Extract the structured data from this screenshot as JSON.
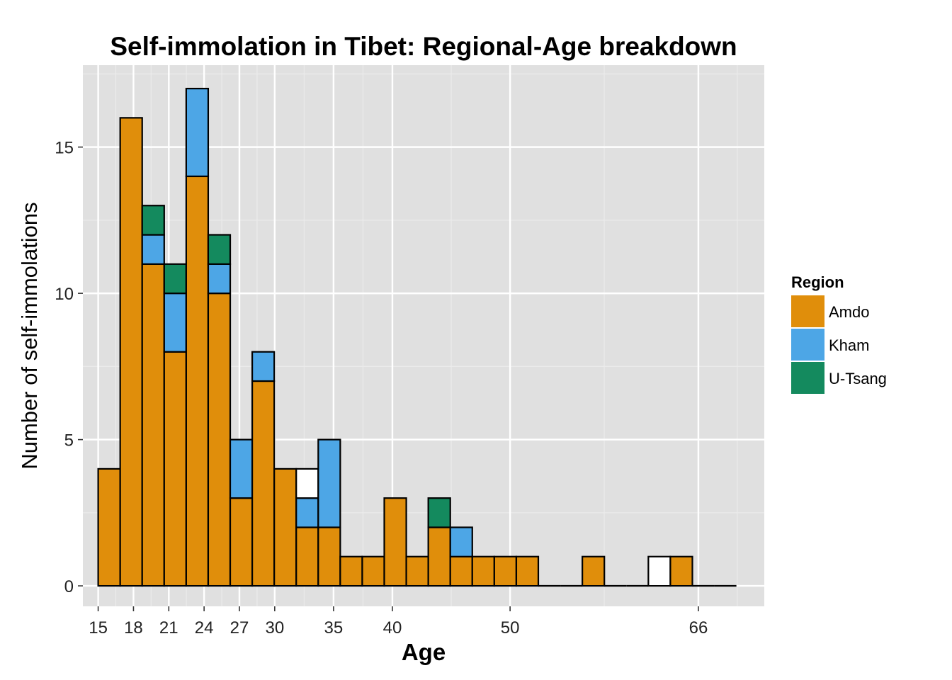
{
  "chart_data": {
    "type": "bar",
    "stacked": true,
    "title": "Self-immolation in Tibet: Regional-Age breakdown",
    "xlabel": "Age",
    "ylabel": "Number of self-immolations",
    "x_ticks": [
      15,
      18,
      21,
      24,
      27,
      30,
      35,
      40,
      50,
      66
    ],
    "y_ticks": [
      0,
      5,
      10,
      15
    ],
    "xlim": [
      13.7,
      71.6
    ],
    "ylim": [
      -0.7,
      17.8
    ],
    "grid": true,
    "legend_position": "right",
    "legend": {
      "title": "Region",
      "entries": [
        "Amdo",
        "Kham",
        "U-Tsang"
      ]
    },
    "colors": {
      "Amdo": "#E08E0B",
      "Kham": "#4DA6E6",
      "U-Tsang": "#148A5E",
      "Unknown": "#FFFFFF",
      "panel": "#E0E0E0",
      "grid_major": "#FFFFFF",
      "grid_minor": "#EBEBEB",
      "outline": "#000000"
    },
    "bin_width": 1.87,
    "bins": [
      {
        "start": 15.0,
        "Amdo": 4,
        "Kham": 0,
        "U-Tsang": 0,
        "Unknown": 0
      },
      {
        "start": 16.87,
        "Amdo": 16,
        "Kham": 0,
        "U-Tsang": 0,
        "Unknown": 0
      },
      {
        "start": 18.74,
        "Amdo": 11,
        "Kham": 1,
        "U-Tsang": 1,
        "Unknown": 0
      },
      {
        "start": 20.61,
        "Amdo": 8,
        "Kham": 2,
        "U-Tsang": 1,
        "Unknown": 0
      },
      {
        "start": 22.48,
        "Amdo": 14,
        "Kham": 3,
        "U-Tsang": 0,
        "Unknown": 0
      },
      {
        "start": 24.35,
        "Amdo": 10,
        "Kham": 1,
        "U-Tsang": 1,
        "Unknown": 0
      },
      {
        "start": 26.22,
        "Amdo": 3,
        "Kham": 2,
        "U-Tsang": 0,
        "Unknown": 0
      },
      {
        "start": 28.09,
        "Amdo": 7,
        "Kham": 1,
        "U-Tsang": 0,
        "Unknown": 0
      },
      {
        "start": 29.96,
        "Amdo": 4,
        "Kham": 0,
        "U-Tsang": 0,
        "Unknown": 0
      },
      {
        "start": 31.83,
        "Amdo": 2,
        "Kham": 1,
        "U-Tsang": 0,
        "Unknown": 1
      },
      {
        "start": 33.7,
        "Amdo": 2,
        "Kham": 3,
        "U-Tsang": 0,
        "Unknown": 0
      },
      {
        "start": 35.57,
        "Amdo": 1,
        "Kham": 0,
        "U-Tsang": 0,
        "Unknown": 0
      },
      {
        "start": 37.44,
        "Amdo": 1,
        "Kham": 0,
        "U-Tsang": 0,
        "Unknown": 0
      },
      {
        "start": 39.31,
        "Amdo": 3,
        "Kham": 0,
        "U-Tsang": 0,
        "Unknown": 0
      },
      {
        "start": 41.18,
        "Amdo": 1,
        "Kham": 0,
        "U-Tsang": 0,
        "Unknown": 0
      },
      {
        "start": 43.05,
        "Amdo": 2,
        "Kham": 0,
        "U-Tsang": 1,
        "Unknown": 0
      },
      {
        "start": 44.92,
        "Amdo": 1,
        "Kham": 1,
        "U-Tsang": 0,
        "Unknown": 0
      },
      {
        "start": 46.79,
        "Amdo": 1,
        "Kham": 0,
        "U-Tsang": 0,
        "Unknown": 0
      },
      {
        "start": 48.66,
        "Amdo": 1,
        "Kham": 0,
        "U-Tsang": 0,
        "Unknown": 0
      },
      {
        "start": 50.53,
        "Amdo": 1,
        "Kham": 0,
        "U-Tsang": 0,
        "Unknown": 0
      },
      {
        "start": 52.4,
        "Amdo": 0,
        "Kham": 0,
        "U-Tsang": 0,
        "Unknown": 0
      },
      {
        "start": 54.27,
        "Amdo": 0,
        "Kham": 0,
        "U-Tsang": 0,
        "Unknown": 0
      },
      {
        "start": 56.14,
        "Amdo": 1,
        "Kham": 0,
        "U-Tsang": 0,
        "Unknown": 0
      },
      {
        "start": 58.01,
        "Amdo": 0,
        "Kham": 0,
        "U-Tsang": 0,
        "Unknown": 0
      },
      {
        "start": 59.88,
        "Amdo": 0,
        "Kham": 0,
        "U-Tsang": 0,
        "Unknown": 0
      },
      {
        "start": 61.75,
        "Amdo": 0,
        "Kham": 0,
        "U-Tsang": 0,
        "Unknown": 1
      },
      {
        "start": 63.62,
        "Amdo": 1,
        "Kham": 0,
        "U-Tsang": 0,
        "Unknown": 0
      },
      {
        "start": 65.49,
        "Amdo": 0,
        "Kham": 0,
        "U-Tsang": 0,
        "Unknown": 0
      },
      {
        "start": 67.36,
        "Amdo": 0,
        "Kham": 0,
        "U-Tsang": 0,
        "Unknown": 0
      }
    ]
  }
}
